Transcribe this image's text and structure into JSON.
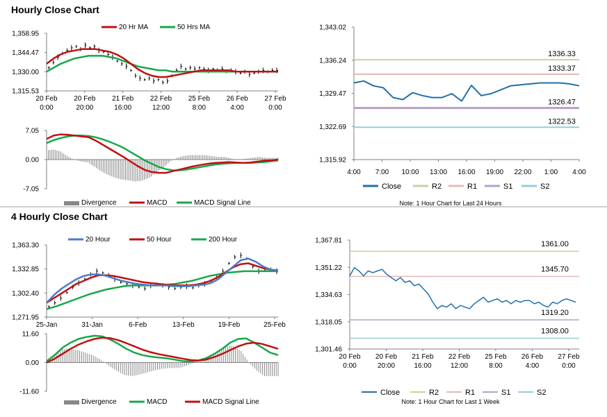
{
  "sections": [
    {
      "title": "Hourly Close Chart"
    },
    {
      "title": "4 Hourly Close Chart"
    }
  ],
  "colors": {
    "red": "#c0100f",
    "green": "#14a84a",
    "blue": "#4a7cc8",
    "bar": "#888888",
    "axis": "#7f7f7f",
    "pivot_line": "#1f6fa7",
    "r2": "#c3d69b",
    "r1": "#e6b9b8",
    "s1": "#b3a2c7",
    "s2": "#93cddd"
  },
  "chart_data": [
    {
      "id": "hourly-price",
      "type": "line",
      "legend": [
        "20 Hr MA",
        "50 Hrs MA"
      ],
      "yticks": [
        "1,358.95",
        "1,344.47",
        "1,330.00",
        "1,315.53"
      ],
      "ylim": [
        1315.53,
        1358.95
      ],
      "xticks": [
        [
          "20 Feb",
          "0:00"
        ],
        [
          "20 Feb",
          "20:00"
        ],
        [
          "21 Feb",
          "16:00"
        ],
        [
          "22 Feb",
          "12:00"
        ],
        [
          "25 Feb",
          "8:00"
        ],
        [
          "26 Feb",
          "4:00"
        ],
        [
          "27 Feb",
          "0:00"
        ]
      ],
      "close": [
        1333,
        1337,
        1341,
        1344,
        1346,
        1348,
        1349,
        1347,
        1350,
        1348,
        1349,
        1346,
        1345,
        1343,
        1341,
        1338,
        1336,
        1334,
        1331,
        1327,
        1325,
        1324,
        1325,
        1323,
        1324,
        1322,
        1323,
        1327,
        1331,
        1334,
        1332,
        1333,
        1332,
        1333,
        1332,
        1331,
        1332,
        1331,
        1332,
        1330,
        1331,
        1330,
        1329,
        1330,
        1328,
        1329,
        1330,
        1331,
        1330,
        1331,
        1331
      ],
      "ma20": [
        1336,
        1340,
        1343,
        1345,
        1346,
        1347,
        1347,
        1347,
        1346,
        1345,
        1343,
        1340,
        1336,
        1332,
        1329,
        1327,
        1326,
        1326,
        1327,
        1328,
        1329,
        1330,
        1331,
        1331,
        1331,
        1331,
        1331,
        1330,
        1330,
        1330,
        1330,
        1330,
        1330,
        1330
      ],
      "ma50": [
        1330,
        1333,
        1336,
        1338,
        1340,
        1341,
        1342,
        1342,
        1342,
        1341,
        1340,
        1338,
        1336,
        1334,
        1333,
        1332,
        1331,
        1331,
        1330,
        1330,
        1330,
        1330,
        1330,
        1330,
        1330,
        1330,
        1330,
        1330,
        1330,
        1330,
        1330,
        1330,
        1330,
        1330
      ]
    },
    {
      "id": "hourly-macd",
      "type": "line",
      "legend": [
        "Divergence",
        "MACD",
        "MACD Signal Line"
      ],
      "yticks": [
        "7.05",
        "0.00",
        "-7.05"
      ],
      "ylim": [
        -7.05,
        7.05
      ],
      "macd": [
        5.0,
        5.8,
        6.1,
        6.0,
        5.8,
        5.6,
        5.4,
        4.6,
        3.6,
        2.6,
        1.6,
        0.6,
        -0.5,
        -1.6,
        -2.5,
        -3.0,
        -3.2,
        -3.2,
        -2.8,
        -2.4,
        -2.0,
        -1.6,
        -1.3,
        -1.0,
        -0.8,
        -0.7,
        -0.6,
        -0.7,
        -0.8,
        -0.7,
        -0.5,
        -0.3,
        -0.2,
        0.0
      ],
      "signal": [
        4.0,
        4.7,
        5.2,
        5.6,
        5.8,
        5.8,
        5.7,
        5.4,
        4.9,
        4.3,
        3.6,
        2.8,
        1.8,
        0.8,
        -0.2,
        -1.0,
        -1.8,
        -2.3,
        -2.6,
        -2.6,
        -2.4,
        -2.1,
        -1.8,
        -1.5,
        -1.2,
        -1.0,
        -0.9,
        -0.8,
        -0.8,
        -0.8,
        -0.7,
        -0.6,
        -0.4,
        -0.2
      ]
    },
    {
      "id": "hourly-pivot",
      "type": "line",
      "yticks": [
        "1,343.02",
        "1,336.24",
        "1,329.47",
        "1,322.69",
        "1,315.92"
      ],
      "ylim": [
        1315.92,
        1343.02
      ],
      "xticks": [
        "4:00",
        "7:00",
        "10:00",
        "13:00",
        "16:00",
        "19:00",
        "22:00",
        "1:00",
        "4:00"
      ],
      "close": [
        1331.6,
        1332.0,
        1331.0,
        1330.6,
        1328.6,
        1328.2,
        1329.6,
        1329.0,
        1328.6,
        1328.6,
        1329.4,
        1327.9,
        1331.1,
        1329.0,
        1329.4,
        1330.2,
        1331.0,
        1331.2,
        1331.4,
        1331.6,
        1331.6,
        1331.6,
        1331.4,
        1331.0
      ],
      "levels": [
        {
          "name": "R2",
          "value": 1336.33,
          "label": "1336.33"
        },
        {
          "name": "R1",
          "value": 1333.37,
          "label": "1333.37"
        },
        {
          "name": "S1",
          "value": 1326.47,
          "label": "1326.47"
        },
        {
          "name": "S2",
          "value": 1322.53,
          "label": "1322.53"
        }
      ],
      "legend": [
        "Close",
        "R2",
        "R1",
        "S1",
        "S2"
      ],
      "note": "Note: 1 Hour Chart for Last 24 Hours"
    },
    {
      "id": "4h-price",
      "type": "line",
      "legend": [
        "20 Hour",
        "50 Hour",
        "200 Hour"
      ],
      "yticks": [
        "1,363.30",
        "1,332.85",
        "1,302.40",
        "1,271.95"
      ],
      "ylim": [
        1271.95,
        1363.3
      ],
      "xticks": [
        "25-Jan",
        "31-Jan",
        "6-Feb",
        "13-Feb",
        "19-Feb",
        "25-Feb"
      ],
      "close": [
        1285,
        1290,
        1296,
        1303,
        1310,
        1315,
        1320,
        1326,
        1330,
        1328,
        1325,
        1320,
        1316,
        1314,
        1312,
        1310,
        1308,
        1312,
        1314,
        1312,
        1310,
        1308,
        1310,
        1311,
        1309,
        1312,
        1314,
        1318,
        1322,
        1330,
        1340,
        1348,
        1350,
        1346,
        1336,
        1330,
        1331,
        1332,
        1330
      ],
      "ma20": [
        1290,
        1300,
        1308,
        1314,
        1320,
        1324,
        1326,
        1326,
        1324,
        1321,
        1318,
        1316,
        1314,
        1313,
        1312,
        1312,
        1312,
        1311,
        1311,
        1311,
        1312,
        1313,
        1315,
        1320,
        1328,
        1336,
        1344,
        1346,
        1342,
        1336,
        1332,
        1331
      ],
      "ma50": [
        1290,
        1296,
        1302,
        1308,
        1314,
        1318,
        1322,
        1325,
        1325,
        1324,
        1322,
        1320,
        1318,
        1316,
        1315,
        1314,
        1313,
        1312,
        1312,
        1312,
        1313,
        1315,
        1318,
        1323,
        1329,
        1335,
        1339,
        1340,
        1337,
        1334,
        1332,
        1331
      ],
      "ma200": [
        1282,
        1285,
        1289,
        1293,
        1297,
        1301,
        1304,
        1307,
        1309,
        1311,
        1312,
        1312,
        1312,
        1312,
        1313,
        1314,
        1316,
        1318,
        1321,
        1324,
        1326,
        1328,
        1329,
        1330,
        1330,
        1330,
        1330,
        1330
      ]
    },
    {
      "id": "4h-macd",
      "type": "line",
      "legend": [
        "Divergence",
        "MACD",
        "MACD Signal Line"
      ],
      "yticks": [
        "11.60",
        "0.00",
        "-11.60"
      ],
      "ylim": [
        -11.6,
        11.6
      ],
      "macd": [
        0.5,
        3.0,
        6.0,
        8.0,
        9.5,
        10.3,
        10.8,
        10.5,
        9.2,
        7.5,
        5.5,
        4.0,
        3.0,
        2.4,
        2.0,
        1.7,
        1.2,
        0.6,
        0.4,
        0.8,
        1.8,
        3.5,
        5.5,
        8.0,
        9.5,
        9.7,
        8.0,
        6.0,
        4.0,
        3.0
      ],
      "signal": [
        0.0,
        1.5,
        3.5,
        5.5,
        7.2,
        8.5,
        9.5,
        10.0,
        9.8,
        9.0,
        7.8,
        6.5,
        5.2,
        4.2,
        3.4,
        2.8,
        2.2,
        1.6,
        1.0,
        0.8,
        1.2,
        2.2,
        3.5,
        5.0,
        6.5,
        7.6,
        8.0,
        7.5,
        6.5,
        5.5
      ]
    },
    {
      "id": "4h-pivot",
      "type": "line",
      "yticks": [
        "1,367.81",
        "1,351.22",
        "1,334.63",
        "1,318.05",
        "1,301.46"
      ],
      "ylim": [
        1301.46,
        1367.81
      ],
      "xticks": [
        [
          "20 Feb",
          "0:00"
        ],
        [
          "20 Feb",
          "20:00"
        ],
        [
          "21 Feb",
          "16:00"
        ],
        [
          "22 Feb",
          "12:00"
        ],
        [
          "25 Feb",
          "8:00"
        ],
        [
          "26 Feb",
          "4:00"
        ],
        [
          "27 Feb",
          "0:00"
        ]
      ],
      "close": [
        1346,
        1351,
        1349,
        1346,
        1349,
        1348,
        1349,
        1350,
        1347,
        1345,
        1343,
        1345,
        1342,
        1343,
        1340,
        1341,
        1338,
        1335,
        1330,
        1326,
        1328,
        1327,
        1329,
        1326,
        1328,
        1327,
        1326,
        1329,
        1331,
        1333,
        1330,
        1331,
        1332,
        1330,
        1331,
        1329,
        1331,
        1330,
        1331,
        1331,
        1329,
        1330,
        1328,
        1327,
        1330,
        1329,
        1331,
        1332,
        1331,
        1330
      ],
      "levels": [
        {
          "name": "R2",
          "value": 1361.0,
          "label": "1361.00"
        },
        {
          "name": "R1",
          "value": 1345.7,
          "label": "1345.70"
        },
        {
          "name": "S1",
          "value": 1319.2,
          "label": "1319.20"
        },
        {
          "name": "S2",
          "value": 1308.0,
          "label": "1308.00"
        }
      ],
      "legend": [
        "Close",
        "R2",
        "R1",
        "S1",
        "S2"
      ],
      "note": "Note: 1 Hour Chart for Last 1 Week"
    }
  ]
}
